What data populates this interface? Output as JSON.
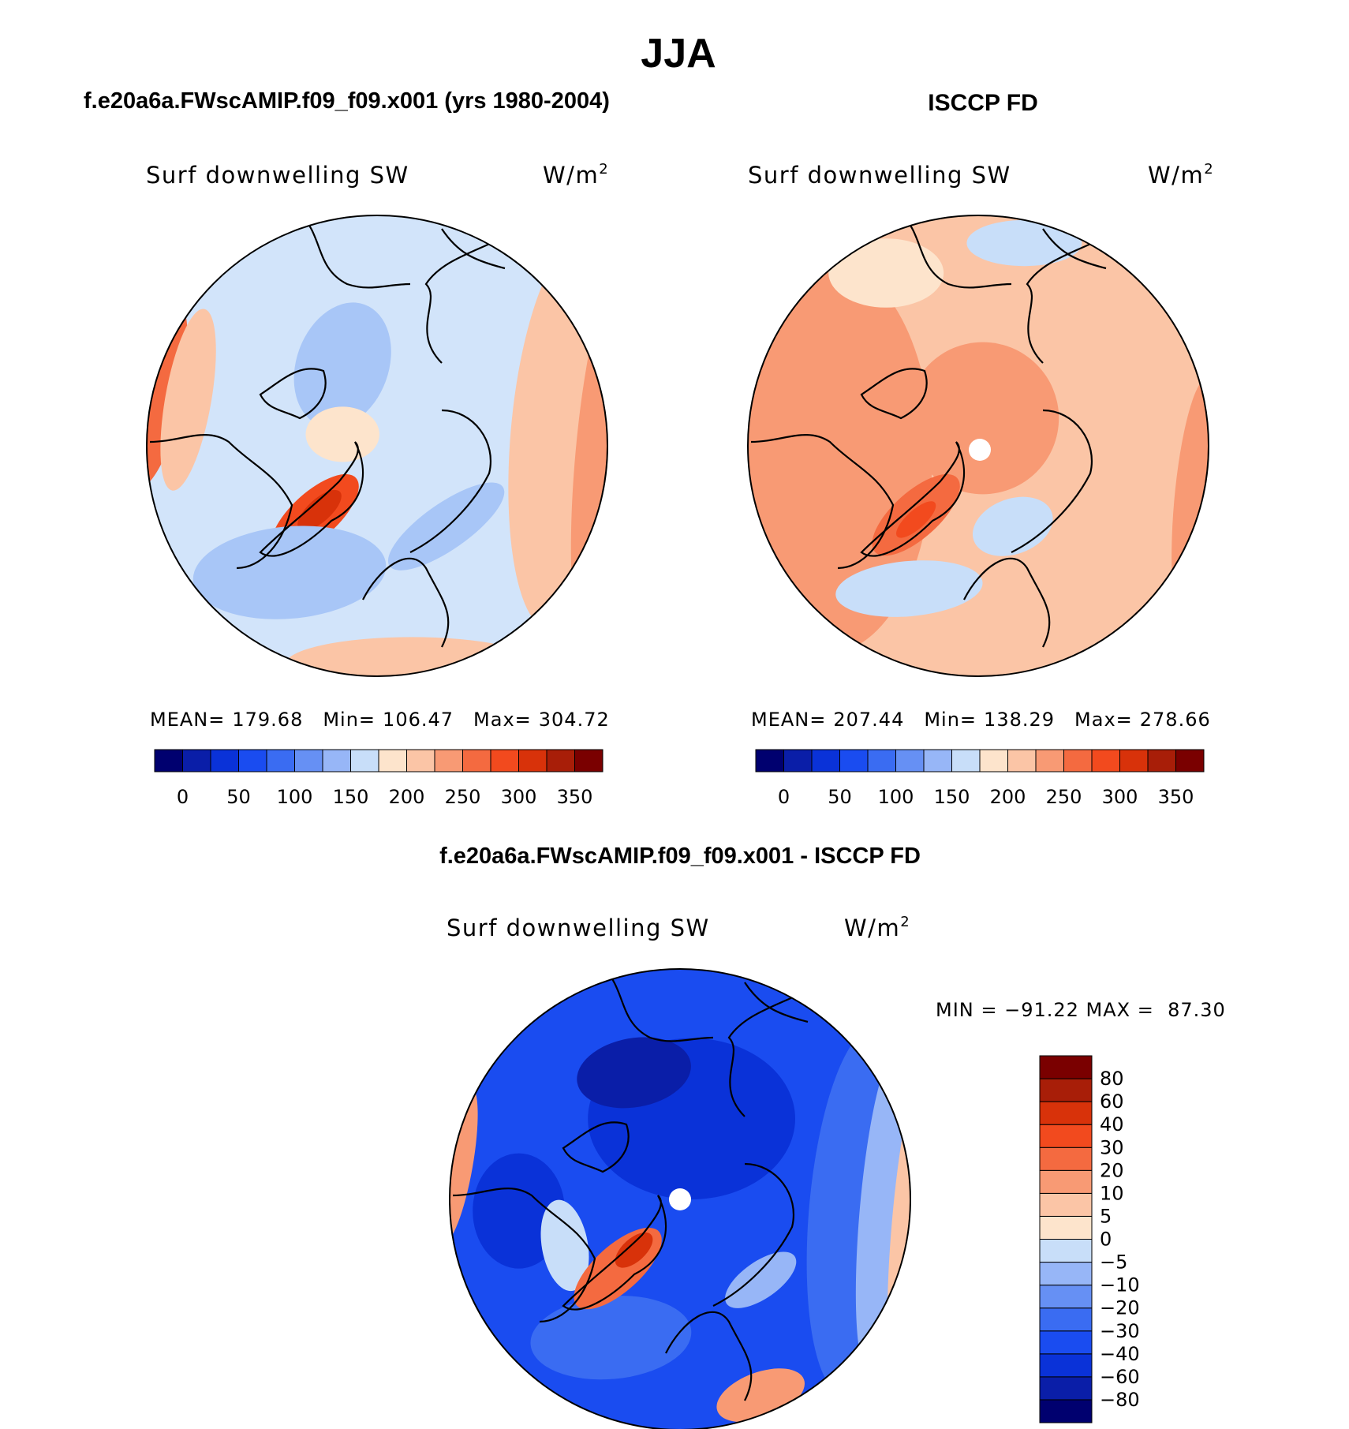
{
  "chart_data": {
    "type": "heatmap",
    "title": "JJA",
    "panels": [
      {
        "id": "model",
        "header": "f.e20a6a.FWscAMIP.f09_f09.x001 (yrs 1980-2004)",
        "variable": "Surf downwelling SW",
        "units_base": "W/m",
        "units_exp": "2",
        "stats": {
          "mean_label": "MEAN=",
          "mean": "179.68",
          "min_label": "Min=",
          "min": "106.47",
          "max_label": "Max=",
          "max": "304.72"
        },
        "projection": "North polar stereographic",
        "has_pole_hole": false
      },
      {
        "id": "obs",
        "header": "ISCCP FD",
        "variable": "Surf downwelling SW",
        "units_base": "W/m",
        "units_exp": "2",
        "stats": {
          "mean_label": "MEAN=",
          "mean": "207.44",
          "min_label": "Min=",
          "min": "138.29",
          "max_label": "Max=",
          "max": "278.66"
        },
        "projection": "North polar stereographic",
        "has_pole_hole": true
      },
      {
        "id": "diff",
        "header": "f.e20a6a.FWscAMIP.f09_f09.x001 - ISCCP FD",
        "variable": "Surf downwelling SW",
        "units_base": "W/m",
        "units_exp": "2",
        "range_text": "MIN = −91.22 MAX =  87.30",
        "projection": "North polar stereographic",
        "has_pole_hole": true
      }
    ],
    "colorbar_abs": {
      "colors": [
        "#00006f",
        "#0a1ea8",
        "#0a32d8",
        "#1a4cf0",
        "#3a6cf2",
        "#6690f4",
        "#97b6f7",
        "#c8def9",
        "#fde4cc",
        "#fbc5a6",
        "#f89a74",
        "#f46a40",
        "#f24a1e",
        "#d8320a",
        "#a81e08",
        "#7a0000"
      ],
      "tick_labels": [
        "0",
        "50",
        "100",
        "150",
        "200",
        "250",
        "300",
        "350"
      ]
    },
    "colorbar_diff": {
      "colors": [
        "#00006f",
        "#0a1ea8",
        "#0a32d8",
        "#1a4cf0",
        "#3a6cf2",
        "#6690f4",
        "#97b6f7",
        "#c8def9",
        "#fde4cc",
        "#fbc5a6",
        "#f89a74",
        "#f46a40",
        "#f24a1e",
        "#d8320a",
        "#a81e08",
        "#7a0000"
      ],
      "levels": [
        "−80",
        "−60",
        "−40",
        "−30",
        "−20",
        "−10",
        "−5",
        "0",
        "5",
        "10",
        "20",
        "30",
        "40",
        "60",
        "80"
      ]
    },
    "fields": {
      "model": {
        "background": "#d2e4fa",
        "regions": [
          {
            "name": "greenland",
            "cx": -0.27,
            "cy": 0.3,
            "rx": 0.24,
            "ry": 0.1,
            "rot": -42,
            "color": "#f24a1e"
          },
          {
            "name": "greenland-core",
            "cx": -0.25,
            "cy": 0.28,
            "rx": 0.12,
            "ry": 0.05,
            "rot": -42,
            "color": "#d8320a"
          },
          {
            "name": "pacific-arc",
            "cx": -0.98,
            "cy": -0.25,
            "rx": 0.14,
            "ry": 0.45,
            "rot": 10,
            "color": "#f46a40"
          },
          {
            "name": "pacific-arc-in",
            "cx": -0.82,
            "cy": -0.2,
            "rx": 0.1,
            "ry": 0.4,
            "rot": 10,
            "color": "#fbc5a6"
          },
          {
            "name": "eurasia-east",
            "cx": 0.82,
            "cy": -0.05,
            "rx": 0.24,
            "ry": 0.85,
            "rot": 5,
            "color": "#fbc5a6"
          },
          {
            "name": "eurasia-rim",
            "cx": 0.98,
            "cy": 0.05,
            "rx": 0.12,
            "ry": 0.8,
            "rot": 5,
            "color": "#f89a74"
          },
          {
            "name": "europe-south",
            "cx": 0.15,
            "cy": 0.95,
            "rx": 0.55,
            "ry": 0.12,
            "rot": 0,
            "color": "#fbc5a6"
          },
          {
            "name": "north-atlantic",
            "cx": -0.38,
            "cy": 0.55,
            "rx": 0.42,
            "ry": 0.2,
            "rot": -5,
            "color": "#a8c6f7"
          },
          {
            "name": "barents",
            "cx": 0.3,
            "cy": 0.35,
            "rx": 0.3,
            "ry": 0.1,
            "rot": -35,
            "color": "#a8c6f7"
          },
          {
            "name": "beaufort",
            "cx": -0.15,
            "cy": -0.35,
            "rx": 0.2,
            "ry": 0.28,
            "rot": 20,
            "color": "#a8c6f7"
          },
          {
            "name": "canada-arch",
            "cx": -0.15,
            "cy": -0.05,
            "rx": 0.16,
            "ry": 0.12,
            "rot": 0,
            "color": "#fde4cc"
          }
        ]
      },
      "obs": {
        "background": "#fbc5a6",
        "regions": [
          {
            "name": "outer-ring",
            "cx": -0.65,
            "cy": 0.05,
            "rx": 0.45,
            "ry": 0.85,
            "rot": 0,
            "color": "#f89a74"
          },
          {
            "name": "central-arctic",
            "cx": 0.02,
            "cy": -0.12,
            "rx": 0.33,
            "ry": 0.33,
            "rot": 0,
            "color": "#f89a74"
          },
          {
            "name": "greenland",
            "cx": -0.27,
            "cy": 0.3,
            "rx": 0.24,
            "ry": 0.1,
            "rot": -42,
            "color": "#f46a40"
          },
          {
            "name": "greenland-core",
            "cx": -0.27,
            "cy": 0.32,
            "rx": 0.11,
            "ry": 0.04,
            "rot": -42,
            "color": "#f24a1e"
          },
          {
            "name": "north-atlantic",
            "cx": -0.3,
            "cy": 0.62,
            "rx": 0.32,
            "ry": 0.12,
            "rot": -5,
            "color": "#c8def9"
          },
          {
            "name": "norwegian",
            "cx": 0.15,
            "cy": 0.35,
            "rx": 0.18,
            "ry": 0.12,
            "rot": -20,
            "color": "#c8def9"
          },
          {
            "name": "east-siberia",
            "cx": 0.2,
            "cy": -0.88,
            "rx": 0.25,
            "ry": 0.1,
            "rot": 0,
            "color": "#c8def9"
          },
          {
            "name": "eurasia-rim",
            "cx": 0.95,
            "cy": 0.25,
            "rx": 0.1,
            "ry": 0.55,
            "rot": 5,
            "color": "#f89a74"
          },
          {
            "name": "alaska",
            "cx": -0.4,
            "cy": -0.75,
            "rx": 0.25,
            "ry": 0.15,
            "rot": 0,
            "color": "#fde4cc"
          }
        ]
      },
      "diff": {
        "background": "#1a4cf0",
        "regions": [
          {
            "name": "arctic-deep",
            "cx": 0.05,
            "cy": -0.35,
            "rx": 0.45,
            "ry": 0.35,
            "rot": 0,
            "color": "#0a32d8"
          },
          {
            "name": "siberia-deep",
            "cx": -0.2,
            "cy": -0.55,
            "rx": 0.25,
            "ry": 0.15,
            "rot": -10,
            "color": "#0a1ea8"
          },
          {
            "name": "hudson",
            "cx": -0.7,
            "cy": 0.05,
            "rx": 0.2,
            "ry": 0.25,
            "rot": 0,
            "color": "#0a32d8"
          },
          {
            "name": "eurasia-ring",
            "cx": 0.78,
            "cy": 0.05,
            "rx": 0.22,
            "ry": 0.8,
            "rot": 5,
            "color": "#3a6cf2"
          },
          {
            "name": "eurasia-light",
            "cx": 0.88,
            "cy": 0.05,
            "rx": 0.1,
            "ry": 0.7,
            "rot": 5,
            "color": "#97b6f7"
          },
          {
            "name": "eurasia-rim",
            "cx": 0.98,
            "cy": 0.1,
            "rx": 0.06,
            "ry": 0.6,
            "rot": 5,
            "color": "#fbc5a6"
          },
          {
            "name": "pacific-rim",
            "cx": -0.97,
            "cy": -0.15,
            "rx": 0.07,
            "ry": 0.35,
            "rot": 10,
            "color": "#f89a74"
          },
          {
            "name": "north-atlantic",
            "cx": -0.3,
            "cy": 0.6,
            "rx": 0.35,
            "ry": 0.18,
            "rot": -5,
            "color": "#3a6cf2"
          },
          {
            "name": "labrador",
            "cx": -0.5,
            "cy": 0.2,
            "rx": 0.1,
            "ry": 0.2,
            "rot": -10,
            "color": "#c8def9"
          },
          {
            "name": "greenland",
            "cx": -0.27,
            "cy": 0.3,
            "rx": 0.24,
            "ry": 0.1,
            "rot": -42,
            "color": "#f46a40"
          },
          {
            "name": "greenland-core",
            "cx": -0.2,
            "cy": 0.22,
            "rx": 0.1,
            "ry": 0.05,
            "rot": -42,
            "color": "#d8320a"
          },
          {
            "name": "europe-south",
            "cx": 0.35,
            "cy": 0.85,
            "rx": 0.2,
            "ry": 0.1,
            "rot": -20,
            "color": "#f89a74"
          },
          {
            "name": "barents",
            "cx": 0.35,
            "cy": 0.35,
            "rx": 0.18,
            "ry": 0.08,
            "rot": -35,
            "color": "#97b6f7"
          }
        ]
      }
    },
    "legend_placement": "below maps (panels 1-2), right of map (panel 3)"
  }
}
